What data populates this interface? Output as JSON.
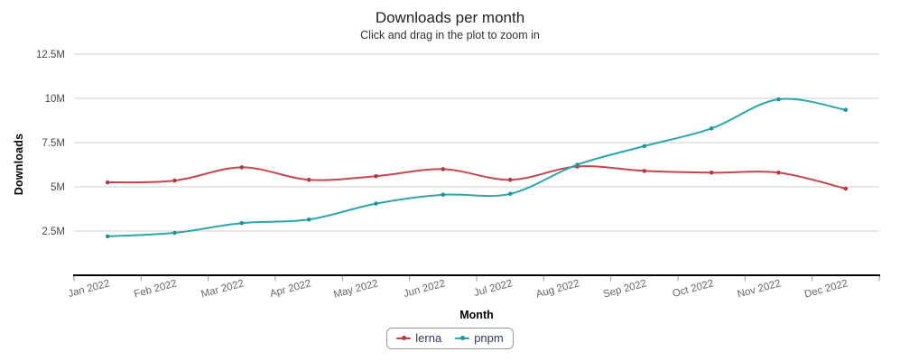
{
  "chart_data": {
    "type": "line",
    "line_shape": "spline",
    "title": "Downloads per month",
    "subtitle": "Click and drag in the plot to zoom in",
    "xlabel": "Month",
    "ylabel": "Downloads",
    "categories": [
      "Jan 2022",
      "Feb 2022",
      "Mar 2022",
      "Apr 2022",
      "May 2022",
      "Jun 2022",
      "Jul 2022",
      "Aug 2022",
      "Sep 2022",
      "Oct 2022",
      "Nov 2022",
      "Dec 2022"
    ],
    "unit": "M",
    "ylim": [
      0,
      12.5
    ],
    "yticks": [
      2.5,
      5,
      7.5,
      10,
      12.5
    ],
    "ytick_labels": [
      "2.5M",
      "5M",
      "7.5M",
      "10M",
      "12.5M"
    ],
    "grid": true,
    "legend_position": "bottom",
    "series": [
      {
        "name": "lerna",
        "color": "#c6454e",
        "marker_color": "#b23a44",
        "values": [
          5.25,
          5.35,
          6.1,
          5.4,
          5.6,
          6.0,
          5.4,
          6.15,
          5.9,
          5.8,
          5.8,
          4.9
        ]
      },
      {
        "name": "pnpm",
        "color": "#2aa6ad",
        "marker_color": "#1f949b",
        "values": [
          2.2,
          2.4,
          2.95,
          3.15,
          4.05,
          4.55,
          4.6,
          6.25,
          7.3,
          8.3,
          9.95,
          9.35
        ]
      }
    ]
  },
  "colors": {
    "background": "#ffffff",
    "grid": "#cccccc",
    "axis_line": "#000000",
    "tick": "#999999",
    "x_label": "#666666",
    "y_label": "#4a4a4a",
    "title": "#222222",
    "subtitle": "#333333",
    "legend_text": "#2f3a54",
    "legend_border": "#999999"
  }
}
